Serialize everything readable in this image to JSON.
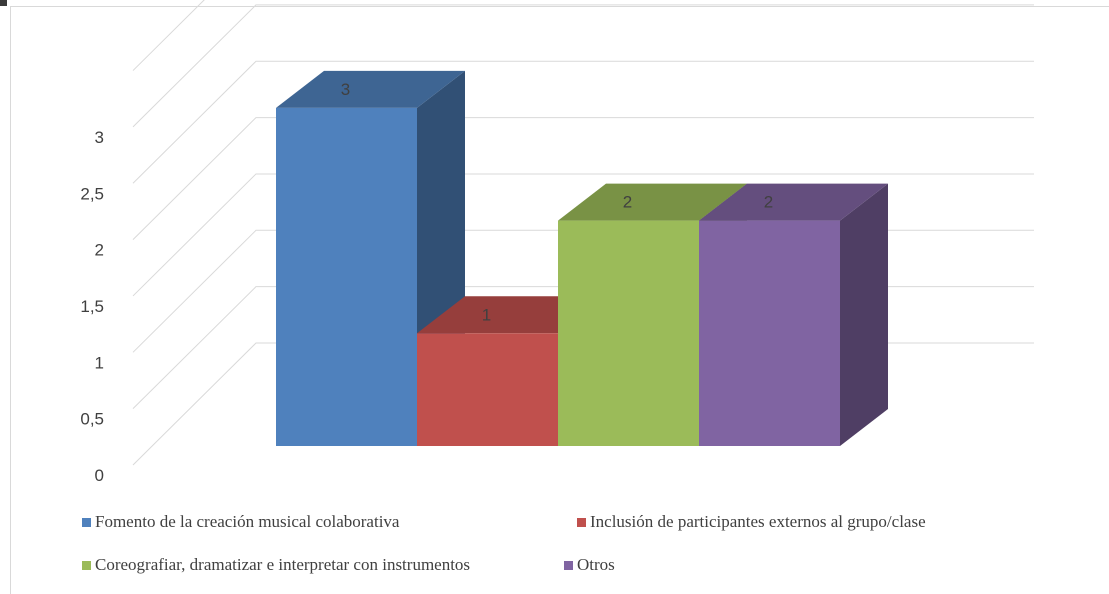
{
  "chart_data": {
    "type": "bar",
    "style": "3d-column",
    "categories": [
      "Fomento de la creación musical colaborativa",
      "Inclusión de participantes externos al grupo/clase",
      "Coreografiar, dramatizar e interpretar con instrumentos",
      "Otros"
    ],
    "values": [
      3,
      1,
      2,
      2
    ],
    "data_labels": [
      "3",
      "1",
      "2",
      "2"
    ],
    "colors": [
      "#4f81bd",
      "#c0504d",
      "#9bbb59",
      "#8064a2"
    ],
    "y_ticks": [
      "0",
      "0,5",
      "1",
      "1,5",
      "2",
      "2,5",
      "3"
    ],
    "ylim": [
      0,
      3.5
    ],
    "grid": true,
    "legend_position": "bottom",
    "title": "",
    "xlabel": "",
    "ylabel": ""
  }
}
